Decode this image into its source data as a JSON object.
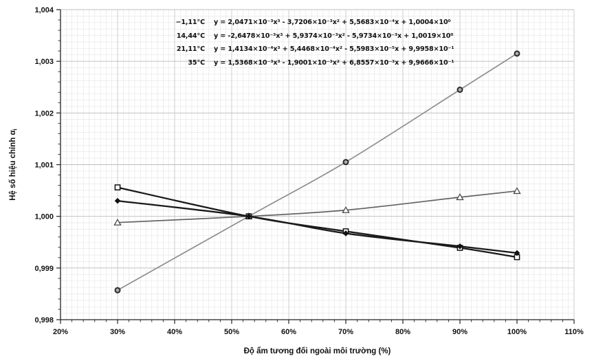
{
  "figure": {
    "background": "#ffffff"
  },
  "colors": {
    "grid_minor": "#e4e4e4",
    "grid_major_x": "#c6c6c6",
    "grid_major_y": "#bcbcbc",
    "axis": "#222222",
    "text": "#111111"
  },
  "chart_data": {
    "type": "line",
    "title": "",
    "xlabel": "Độ ẩm tương đối ngoài môi trường (%)",
    "ylabel": "Hệ số hiệu chỉnh α",
    "ylabel_sub": "i",
    "xlim": [
      20,
      110
    ],
    "ylim": [
      0.998,
      1.004
    ],
    "x_tick_labels": [
      "20%",
      "30%",
      "40%",
      "50%",
      "60%",
      "70%",
      "80%",
      "90%",
      "100%",
      "110%"
    ],
    "x_tick_values": [
      20,
      30,
      40,
      50,
      60,
      70,
      80,
      90,
      100,
      110
    ],
    "y_tick_labels": [
      "1,004",
      "1,003",
      "1,002",
      "1,001",
      "1,000",
      "0,999",
      "0,998"
    ],
    "y_tick_values": [
      1.004,
      1.003,
      1.002,
      1.001,
      1.0,
      0.999,
      0.998
    ],
    "grid": {
      "minor_x": 1,
      "minor_y": 0.000125,
      "major_x": 10,
      "major_y": 0.001
    },
    "legend_position": "top-inside",
    "x_shared": [
      30,
      53,
      70,
      90,
      100
    ],
    "series": [
      {
        "name": "−1,11°C",
        "equation": "y = 2,0471×10⁻³x³ - 3,7206×10⁻³x² + 5,5683×10⁻⁴x + 1,0004×10⁰",
        "marker": "diamond-filled",
        "line_color": "#1a1a1a",
        "line_width": 2.3,
        "x": [
          30,
          53,
          70,
          90,
          100
        ],
        "y": [
          1.0003,
          1.0,
          0.99967,
          0.99942,
          0.99929
        ]
      },
      {
        "name": "14,44°C",
        "equation": "y = -2,6478×10⁻³x³ + 5,9374×10⁻³x² - 5,9734×10⁻³x + 1,0019×10⁰",
        "marker": "square-open",
        "line_color": "#1a1a1a",
        "line_width": 2.3,
        "x": [
          30,
          53,
          70,
          90,
          100
        ],
        "y": [
          1.00056,
          1.0,
          0.99971,
          0.99939,
          0.99921
        ]
      },
      {
        "name": "21,11°C",
        "equation": "y = 1,4134×10⁻⁴x³ + 5,4468×10⁻⁴x² - 5,5983×10⁻⁵x + 9,9958×10⁻¹",
        "marker": "triangle-open",
        "line_color": "#636363",
        "line_width": 1.7,
        "x": [
          30,
          53,
          70,
          90,
          100
        ],
        "y": [
          0.99988,
          1.0,
          1.00012,
          1.00037,
          1.00049
        ]
      },
      {
        "name": "35°C",
        "equation": "y = 1,5368×10⁻³x³ - 1,9001×10⁻³x² + 6,8557×10⁻³x + 9,9666×10⁻¹",
        "marker": "circle-open",
        "line_color": "#8e8e8e",
        "line_width": 1.7,
        "x": [
          30,
          53,
          70,
          90,
          100
        ],
        "y": [
          0.99857,
          1.0,
          1.00105,
          1.00245,
          1.00315
        ]
      }
    ]
  }
}
